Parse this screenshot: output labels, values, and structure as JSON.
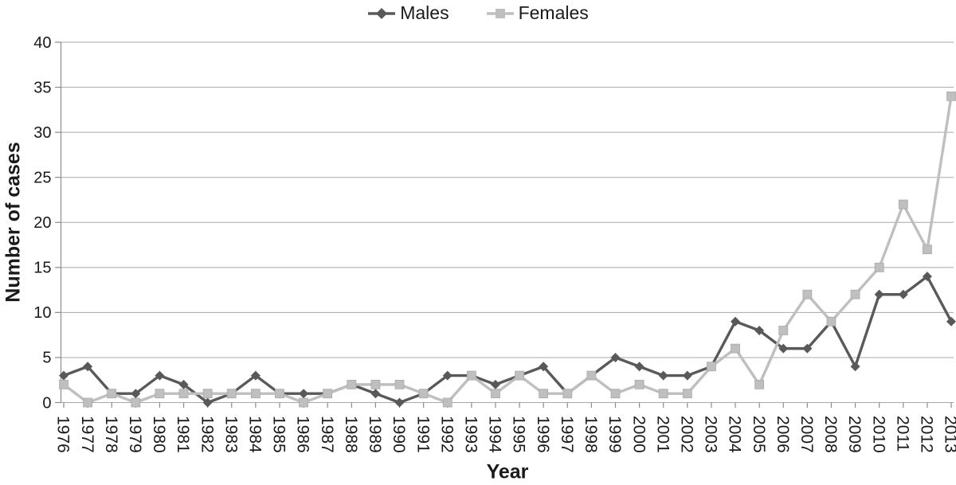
{
  "chart_data": {
    "type": "line",
    "title": "",
    "xlabel": "Year",
    "ylabel": "Number of cases",
    "ylim": [
      0,
      40
    ],
    "ytick_step": 5,
    "grid": "horizontal",
    "legend_position": "top",
    "categories": [
      "1976",
      "1977",
      "1978",
      "1979",
      "1980",
      "1981",
      "1982",
      "1983",
      "1984",
      "1985",
      "1986",
      "1987",
      "1988",
      "1989",
      "1990",
      "1991",
      "1992",
      "1993",
      "1994",
      "1995",
      "1996",
      "1997",
      "1998",
      "1999",
      "2000",
      "2001",
      "2002",
      "2003",
      "2004",
      "2005",
      "2006",
      "2007",
      "2008",
      "2009",
      "2010",
      "2011",
      "2012",
      "2013"
    ],
    "series": [
      {
        "name": "Males",
        "marker": "diamond",
        "color": "#595959",
        "values": [
          3,
          4,
          1,
          1,
          3,
          2,
          0,
          1,
          3,
          1,
          1,
          1,
          2,
          1,
          0,
          1,
          3,
          3,
          2,
          3,
          4,
          1,
          3,
          5,
          4,
          3,
          3,
          4,
          9,
          8,
          6,
          6,
          9,
          4,
          12,
          12,
          14,
          9
        ]
      },
      {
        "name": "Females",
        "marker": "square",
        "color": "#bfbfbf",
        "values": [
          2,
          0,
          1,
          0,
          1,
          1,
          1,
          1,
          1,
          1,
          0,
          1,
          2,
          2,
          2,
          1,
          0,
          3,
          1,
          3,
          1,
          1,
          3,
          1,
          2,
          1,
          1,
          4,
          6,
          2,
          8,
          12,
          9,
          12,
          15,
          22,
          17,
          34
        ]
      }
    ],
    "colors": {
      "grid": "#a8a8a8",
      "axis": "#8c8c8c",
      "text": "#1a1a1a"
    }
  }
}
